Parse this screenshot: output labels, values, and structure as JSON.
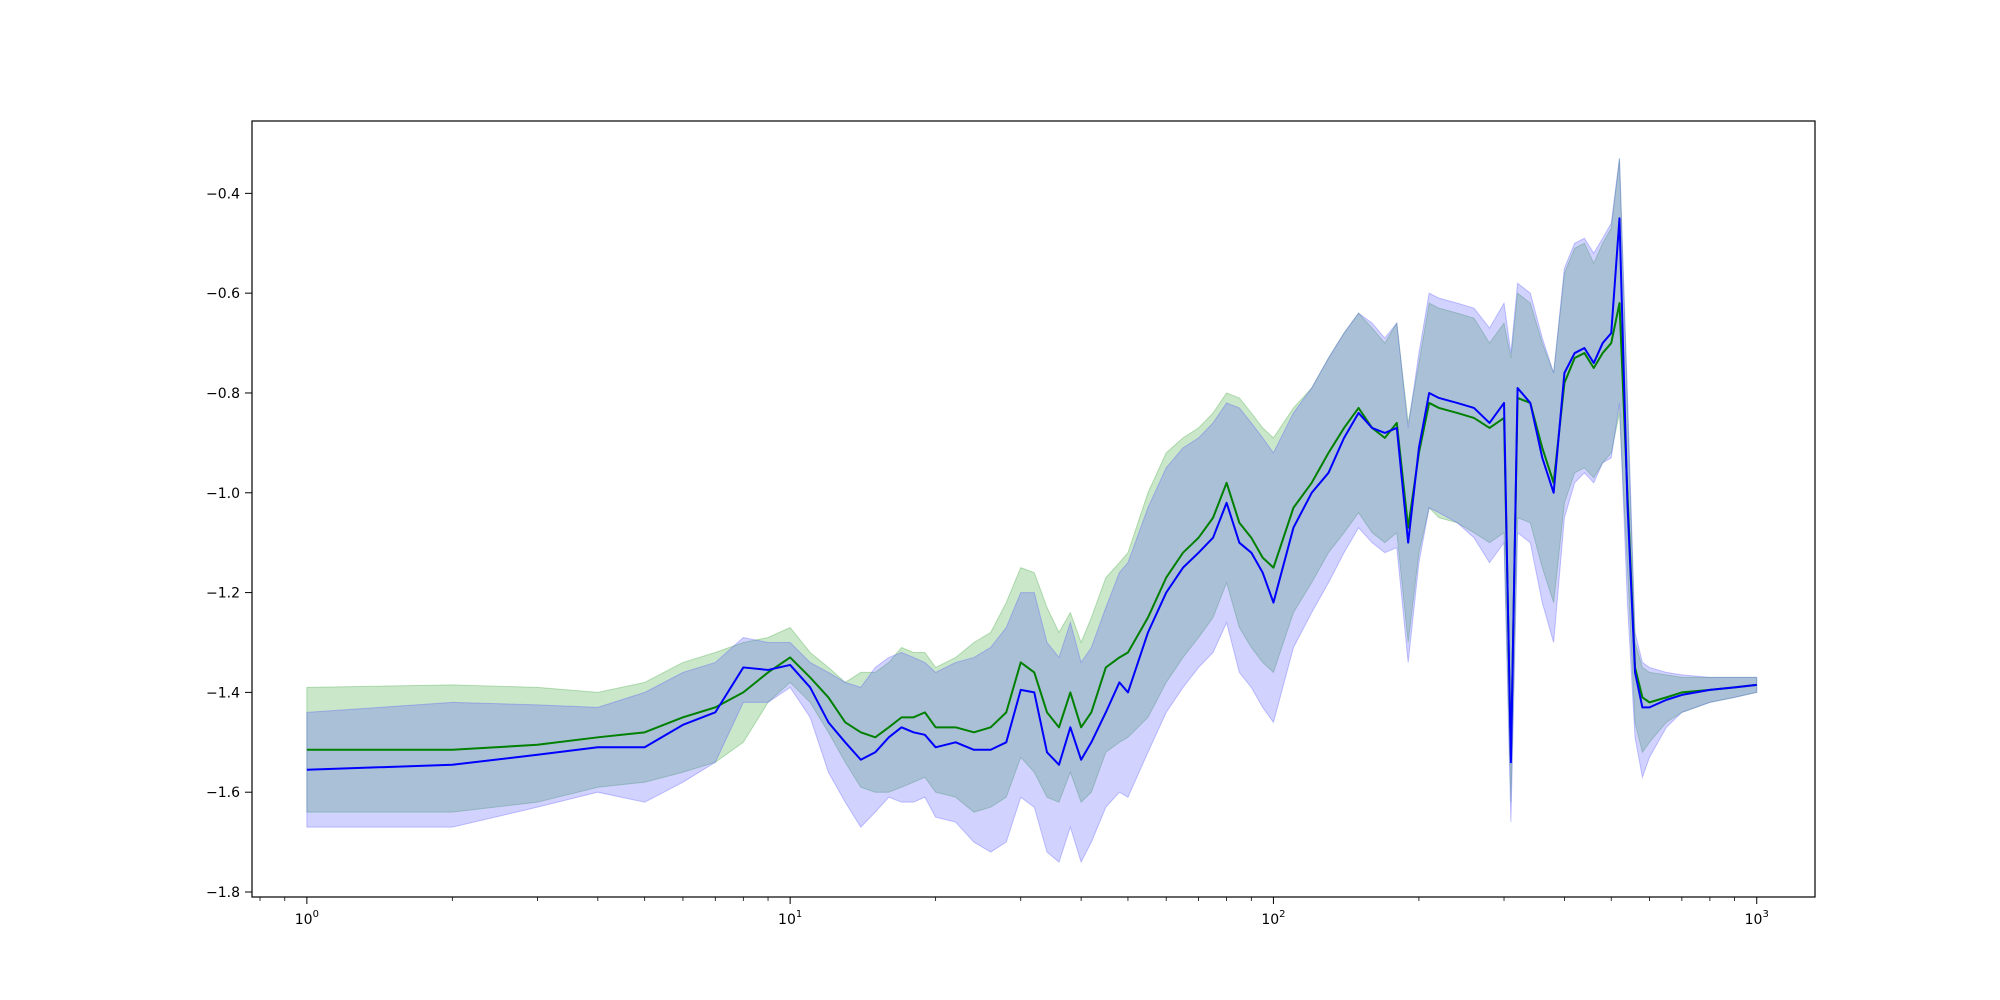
{
  "chart_data": {
    "type": "line",
    "title": "",
    "xlabel": "",
    "ylabel": "",
    "xscale": "log",
    "xlim": [
      0.77,
      1320
    ],
    "ylim": [
      -1.81,
      -0.255
    ],
    "grid": false,
    "legend": "none",
    "x_ticks": [
      {
        "base": "10",
        "exp": "0",
        "value": 1
      },
      {
        "base": "10",
        "exp": "1",
        "value": 10
      },
      {
        "base": "10",
        "exp": "2",
        "value": 100
      },
      {
        "base": "10",
        "exp": "3",
        "value": 1000
      }
    ],
    "y_ticks": [
      {
        "label": "−0.4",
        "value": -0.4
      },
      {
        "label": "−0.6",
        "value": -0.6
      },
      {
        "label": "−0.8",
        "value": -0.8
      },
      {
        "label": "−1.0",
        "value": -1.0
      },
      {
        "label": "−1.2",
        "value": -1.2
      },
      {
        "label": "−1.4",
        "value": -1.4
      },
      {
        "label": "−1.6",
        "value": -1.6
      },
      {
        "label": "−1.8",
        "value": -1.8
      }
    ],
    "series": [
      {
        "color": "#008000",
        "band_color": "#2ca02c",
        "x": [
          1,
          2,
          3,
          4,
          5,
          6,
          7,
          8,
          9,
          10,
          11,
          12,
          13,
          14,
          15,
          16,
          17,
          18,
          19,
          20,
          22,
          24,
          26,
          28,
          30,
          32,
          34,
          36,
          38,
          40,
          42,
          45,
          48,
          50,
          55,
          60,
          65,
          70,
          75,
          80,
          85,
          90,
          95,
          100,
          110,
          120,
          130,
          140,
          150,
          160,
          170,
          180,
          190,
          200,
          210,
          220,
          240,
          260,
          280,
          300,
          310,
          320,
          340,
          360,
          380,
          400,
          420,
          440,
          460,
          480,
          500,
          520,
          540,
          560,
          580,
          600,
          650,
          700,
          800,
          900,
          1000
        ],
        "y": [
          -1.515,
          -1.515,
          -1.505,
          -1.49,
          -1.48,
          -1.45,
          -1.43,
          -1.4,
          -1.36,
          -1.33,
          -1.37,
          -1.41,
          -1.46,
          -1.48,
          -1.49,
          -1.47,
          -1.45,
          -1.45,
          -1.44,
          -1.47,
          -1.47,
          -1.48,
          -1.47,
          -1.44,
          -1.34,
          -1.36,
          -1.44,
          -1.47,
          -1.4,
          -1.47,
          -1.44,
          -1.35,
          -1.33,
          -1.32,
          -1.25,
          -1.17,
          -1.12,
          -1.09,
          -1.05,
          -0.98,
          -1.06,
          -1.09,
          -1.13,
          -1.15,
          -1.03,
          -0.98,
          -0.92,
          -0.87,
          -0.83,
          -0.87,
          -0.89,
          -0.86,
          -1.07,
          -0.92,
          -0.82,
          -0.83,
          -0.84,
          -0.85,
          -0.87,
          -0.85,
          -1.53,
          -0.81,
          -0.82,
          -0.91,
          -0.98,
          -0.78,
          -0.73,
          -0.72,
          -0.75,
          -0.72,
          -0.7,
          -0.62,
          -1.0,
          -1.35,
          -1.41,
          -1.42,
          -1.41,
          -1.4,
          -1.395,
          -1.39,
          -1.385
        ],
        "upper": [
          -1.39,
          -1.385,
          -1.39,
          -1.4,
          -1.38,
          -1.34,
          -1.32,
          -1.3,
          -1.29,
          -1.27,
          -1.32,
          -1.35,
          -1.38,
          -1.36,
          -1.36,
          -1.34,
          -1.31,
          -1.32,
          -1.32,
          -1.35,
          -1.33,
          -1.3,
          -1.28,
          -1.22,
          -1.15,
          -1.16,
          -1.23,
          -1.28,
          -1.24,
          -1.3,
          -1.25,
          -1.17,
          -1.14,
          -1.12,
          -1.0,
          -0.92,
          -0.89,
          -0.87,
          -0.84,
          -0.8,
          -0.81,
          -0.84,
          -0.87,
          -0.89,
          -0.83,
          -0.79,
          -0.73,
          -0.68,
          -0.64,
          -0.67,
          -0.7,
          -0.66,
          -0.86,
          -0.74,
          -0.62,
          -0.63,
          -0.64,
          -0.65,
          -0.7,
          -0.66,
          -0.73,
          -0.6,
          -0.62,
          -0.7,
          -0.76,
          -0.56,
          -0.51,
          -0.5,
          -0.54,
          -0.5,
          -0.47,
          -0.33,
          -0.82,
          -1.3,
          -1.35,
          -1.36,
          -1.365,
          -1.37,
          -1.37,
          -1.37,
          -1.37
        ],
        "lower": [
          -1.64,
          -1.64,
          -1.62,
          -1.59,
          -1.58,
          -1.56,
          -1.54,
          -1.5,
          -1.42,
          -1.38,
          -1.42,
          -1.48,
          -1.54,
          -1.59,
          -1.6,
          -1.6,
          -1.59,
          -1.58,
          -1.57,
          -1.6,
          -1.61,
          -1.64,
          -1.63,
          -1.61,
          -1.53,
          -1.56,
          -1.61,
          -1.62,
          -1.56,
          -1.62,
          -1.6,
          -1.52,
          -1.5,
          -1.49,
          -1.45,
          -1.38,
          -1.33,
          -1.29,
          -1.25,
          -1.18,
          -1.27,
          -1.31,
          -1.34,
          -1.36,
          -1.24,
          -1.18,
          -1.12,
          -1.08,
          -1.04,
          -1.08,
          -1.1,
          -1.08,
          -1.3,
          -1.12,
          -1.03,
          -1.05,
          -1.06,
          -1.08,
          -1.1,
          -1.08,
          -1.62,
          -1.05,
          -1.06,
          -1.15,
          -1.22,
          -1.02,
          -0.96,
          -0.95,
          -0.97,
          -0.94,
          -0.92,
          -0.84,
          -1.15,
          -1.46,
          -1.52,
          -1.5,
          -1.46,
          -1.44,
          -1.42,
          -1.41,
          -1.4
        ]
      },
      {
        "color": "#0000ff",
        "band_color": "#4a4aff",
        "x": [
          1,
          2,
          3,
          4,
          5,
          6,
          7,
          8,
          9,
          10,
          11,
          12,
          13,
          14,
          15,
          16,
          17,
          18,
          19,
          20,
          22,
          24,
          26,
          28,
          30,
          32,
          34,
          36,
          38,
          40,
          42,
          45,
          48,
          50,
          55,
          60,
          65,
          70,
          75,
          80,
          85,
          90,
          95,
          100,
          110,
          120,
          130,
          140,
          150,
          160,
          170,
          180,
          190,
          200,
          210,
          220,
          240,
          260,
          280,
          300,
          310,
          320,
          340,
          360,
          380,
          400,
          420,
          440,
          460,
          480,
          500,
          520,
          540,
          560,
          580,
          600,
          650,
          700,
          800,
          900,
          1000
        ],
        "y": [
          -1.555,
          -1.545,
          -1.525,
          -1.51,
          -1.51,
          -1.465,
          -1.44,
          -1.35,
          -1.355,
          -1.345,
          -1.39,
          -1.46,
          -1.5,
          -1.535,
          -1.52,
          -1.49,
          -1.47,
          -1.48,
          -1.485,
          -1.51,
          -1.5,
          -1.515,
          -1.515,
          -1.5,
          -1.395,
          -1.4,
          -1.52,
          -1.545,
          -1.47,
          -1.535,
          -1.5,
          -1.44,
          -1.38,
          -1.4,
          -1.28,
          -1.2,
          -1.15,
          -1.12,
          -1.09,
          -1.02,
          -1.1,
          -1.12,
          -1.16,
          -1.22,
          -1.07,
          -1.0,
          -0.96,
          -0.89,
          -0.84,
          -0.87,
          -0.88,
          -0.87,
          -1.1,
          -0.91,
          -0.8,
          -0.81,
          -0.82,
          -0.83,
          -0.86,
          -0.82,
          -1.54,
          -0.79,
          -0.82,
          -0.93,
          -1.0,
          -0.76,
          -0.72,
          -0.71,
          -0.74,
          -0.7,
          -0.68,
          -0.45,
          -1.02,
          -1.36,
          -1.43,
          -1.43,
          -1.415,
          -1.405,
          -1.395,
          -1.39,
          -1.385
        ],
        "upper": [
          -1.44,
          -1.42,
          -1.425,
          -1.43,
          -1.4,
          -1.36,
          -1.34,
          -1.29,
          -1.3,
          -1.3,
          -1.34,
          -1.36,
          -1.38,
          -1.39,
          -1.35,
          -1.33,
          -1.32,
          -1.33,
          -1.34,
          -1.36,
          -1.34,
          -1.33,
          -1.31,
          -1.27,
          -1.2,
          -1.2,
          -1.3,
          -1.33,
          -1.26,
          -1.34,
          -1.31,
          -1.23,
          -1.16,
          -1.14,
          -1.03,
          -0.95,
          -0.91,
          -0.89,
          -0.86,
          -0.82,
          -0.83,
          -0.86,
          -0.89,
          -0.92,
          -0.84,
          -0.79,
          -0.73,
          -0.68,
          -0.64,
          -0.66,
          -0.69,
          -0.66,
          -0.87,
          -0.72,
          -0.6,
          -0.61,
          -0.62,
          -0.63,
          -0.67,
          -0.62,
          -0.72,
          -0.58,
          -0.6,
          -0.69,
          -0.76,
          -0.55,
          -0.5,
          -0.49,
          -0.52,
          -0.49,
          -0.46,
          -0.33,
          -0.8,
          -1.28,
          -1.34,
          -1.35,
          -1.36,
          -1.365,
          -1.37,
          -1.37,
          -1.37
        ],
        "lower": [
          -1.67,
          -1.67,
          -1.63,
          -1.6,
          -1.62,
          -1.58,
          -1.54,
          -1.42,
          -1.42,
          -1.39,
          -1.45,
          -1.56,
          -1.62,
          -1.67,
          -1.64,
          -1.61,
          -1.62,
          -1.62,
          -1.61,
          -1.65,
          -1.66,
          -1.7,
          -1.72,
          -1.7,
          -1.61,
          -1.63,
          -1.72,
          -1.74,
          -1.67,
          -1.74,
          -1.7,
          -1.63,
          -1.6,
          -1.61,
          -1.52,
          -1.44,
          -1.39,
          -1.35,
          -1.32,
          -1.26,
          -1.36,
          -1.39,
          -1.43,
          -1.46,
          -1.31,
          -1.24,
          -1.18,
          -1.12,
          -1.07,
          -1.1,
          -1.12,
          -1.11,
          -1.34,
          -1.14,
          -1.03,
          -1.04,
          -1.06,
          -1.09,
          -1.14,
          -1.1,
          -1.66,
          -1.08,
          -1.1,
          -1.22,
          -1.3,
          -1.05,
          -0.98,
          -0.96,
          -0.98,
          -0.94,
          -0.93,
          -0.82,
          -1.22,
          -1.49,
          -1.57,
          -1.53,
          -1.47,
          -1.44,
          -1.42,
          -1.41,
          -1.4
        ]
      }
    ]
  }
}
